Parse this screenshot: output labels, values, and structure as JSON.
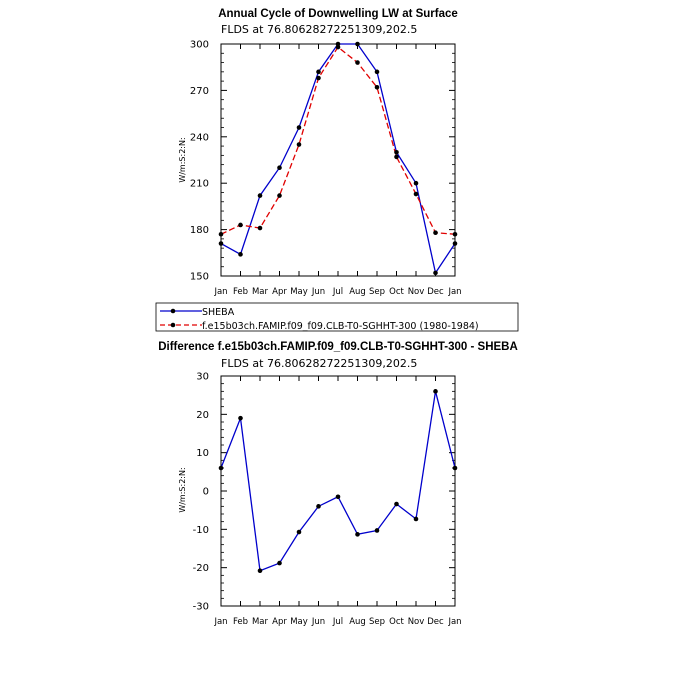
{
  "chart_data": [
    {
      "type": "line",
      "title": "Annual Cycle of Downwelling LW at Surface",
      "subtitle": "FLDS at 76.80628272251309,202.5",
      "ylabel": "W/m:S:2:N:",
      "xlabel": "",
      "categories": [
        "Jan",
        "Feb",
        "Mar",
        "Apr",
        "May",
        "Jun",
        "Jul",
        "Aug",
        "Sep",
        "Oct",
        "Nov",
        "Dec",
        "Jan"
      ],
      "ylim": [
        150,
        300
      ],
      "yticks": [
        150,
        180,
        210,
        240,
        270,
        300
      ],
      "series": [
        {
          "name": "SHEBA",
          "color": "#0000cc",
          "style": "solid",
          "values": [
            171,
            164,
            202,
            220,
            246,
            282,
            300,
            300,
            282,
            230,
            210,
            152,
            171
          ]
        },
        {
          "name": "f.e15b03ch.FAMIP.f09_f09.CLB-T0-SGHHT-300 (1980-1984)",
          "color": "#e00000",
          "style": "dashed",
          "values": [
            177,
            183,
            181,
            202,
            235,
            278,
            298,
            288,
            272,
            227,
            203,
            178,
            177
          ]
        }
      ]
    },
    {
      "type": "line",
      "title": "Difference f.e15b03ch.FAMIP.f09_f09.CLB-T0-SGHHT-300 - SHEBA",
      "subtitle": "FLDS at 76.80628272251309,202.5",
      "ylabel": "W/m:S:2:N:",
      "xlabel": "",
      "categories": [
        "Jan",
        "Feb",
        "Mar",
        "Apr",
        "May",
        "Jun",
        "Jul",
        "Aug",
        "Sep",
        "Oct",
        "Nov",
        "Dec",
        "Jan"
      ],
      "ylim": [
        -30,
        30
      ],
      "yticks": [
        -30,
        -20,
        -10,
        0,
        10,
        20,
        30
      ],
      "series": [
        {
          "name": "Difference",
          "color": "#0000cc",
          "style": "solid",
          "values": [
            6,
            19,
            -20.8,
            -18.8,
            -10.7,
            -4,
            -1.5,
            -11.3,
            -10.3,
            -3.4,
            -7.3,
            26,
            6
          ]
        }
      ]
    }
  ]
}
